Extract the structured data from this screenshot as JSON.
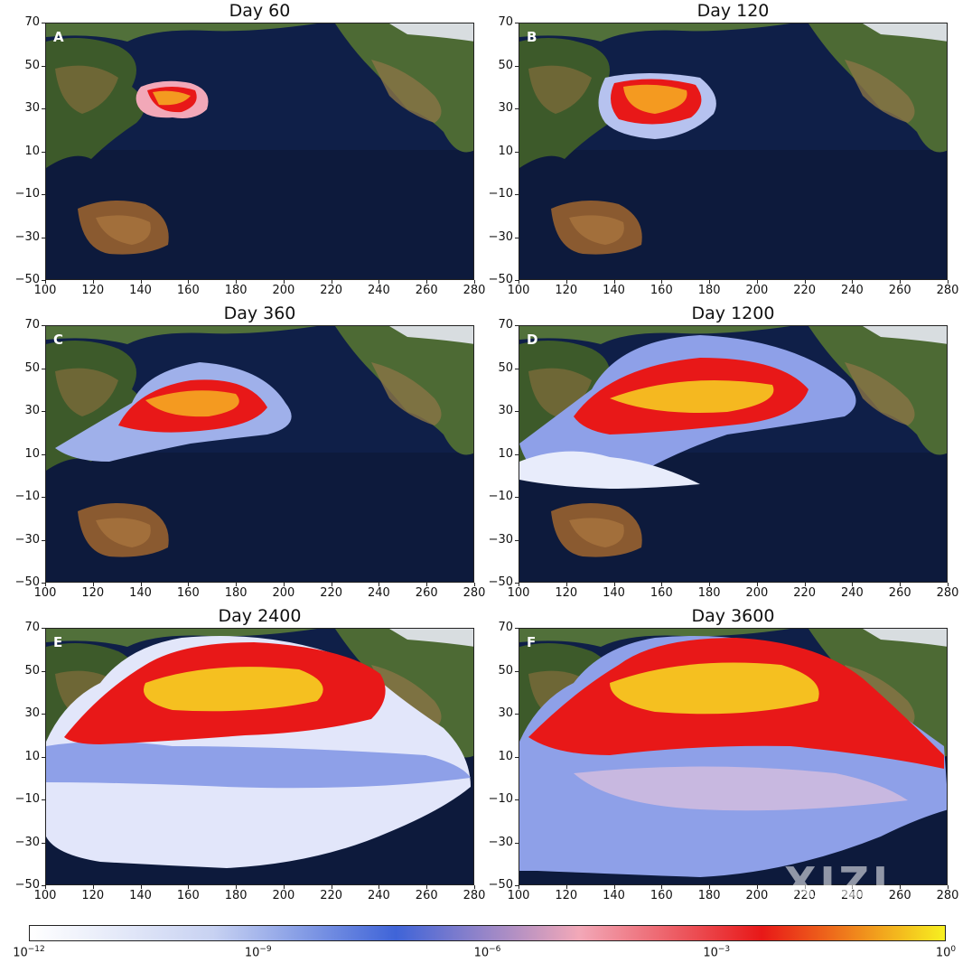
{
  "panels": [
    {
      "letter": "A",
      "title": "Day 60",
      "spread": 0
    },
    {
      "letter": "B",
      "title": "Day 120",
      "spread": 1
    },
    {
      "letter": "C",
      "title": "Day 360",
      "spread": 2
    },
    {
      "letter": "D",
      "title": "Day 1200",
      "spread": 3
    },
    {
      "letter": "E",
      "title": "Day 2400",
      "spread": 4
    },
    {
      "letter": "F",
      "title": "Day 3600",
      "spread": 5
    }
  ],
  "axes": {
    "x_ticks": [
      "100",
      "120",
      "140",
      "160",
      "180",
      "200",
      "220",
      "240",
      "260",
      "280"
    ],
    "y_ticks": [
      "70",
      "50",
      "30",
      "10",
      "−10",
      "−30",
      "−50"
    ]
  },
  "colorbar": {
    "labels": [
      {
        "base": "10",
        "exp": "−12"
      },
      {
        "base": "10",
        "exp": "−9"
      },
      {
        "base": "10",
        "exp": "−6"
      },
      {
        "base": "10",
        "exp": "−3"
      },
      {
        "base": "10",
        "exp": "0"
      }
    ],
    "colors": [
      "#ffffff",
      "#c8d2f2",
      "#3f64d8",
      "#f2a8b8",
      "#e81818",
      "#f7f020"
    ]
  },
  "watermark": "XIZI"
}
